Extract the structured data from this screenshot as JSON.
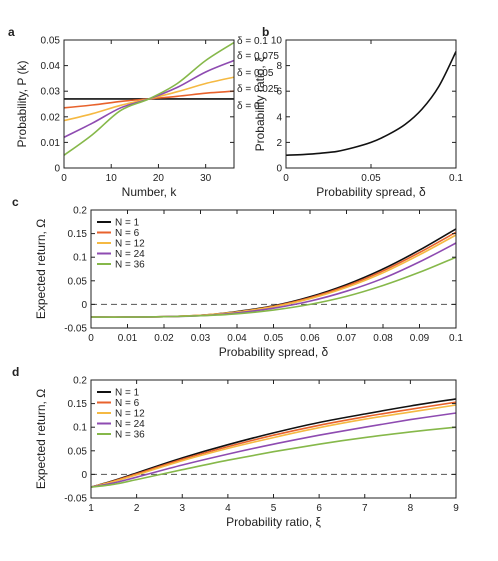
{
  "colors": {
    "black": "#111111",
    "red": "#e8622c",
    "yellow": "#f5b942",
    "purple": "#8e4bb1",
    "green": "#86b84a",
    "zero_line": "#555555"
  },
  "chart_data": [
    {
      "panel": "a",
      "type": "line",
      "xlabel": "Number, k",
      "ylabel": "Probability, P (k)",
      "xlim": [
        0,
        36
      ],
      "ylim": [
        0,
        0.05
      ],
      "xticks": [
        0,
        10,
        20,
        30
      ],
      "yticks": [
        0,
        0.01,
        0.02,
        0.03,
        0.04,
        0.05
      ],
      "grid": false,
      "series": [
        {
          "name": "δ = 0",
          "color": "#111111",
          "x": [
            0,
            36
          ],
          "y": [
            0.027,
            0.027
          ]
        },
        {
          "name": "δ = 0.025",
          "color": "#e8622c",
          "x": [
            0,
            6,
            12,
            18,
            24,
            30,
            36
          ],
          "y": [
            0.0235,
            0.0246,
            0.026,
            0.027,
            0.028,
            0.0292,
            0.03
          ]
        },
        {
          "name": "δ = 0.05",
          "color": "#f5b942",
          "x": [
            0,
            6,
            12,
            18,
            24,
            30,
            36
          ],
          "y": [
            0.0185,
            0.0212,
            0.0245,
            0.027,
            0.0298,
            0.033,
            0.0355
          ]
        },
        {
          "name": "δ = 0.075",
          "color": "#8e4bb1",
          "x": [
            0,
            6,
            12,
            18,
            24,
            30,
            36
          ],
          "y": [
            0.012,
            0.0175,
            0.0235,
            0.027,
            0.0315,
            0.0375,
            0.042
          ]
        },
        {
          "name": "δ = 0.1",
          "color": "#86b84a",
          "x": [
            0,
            6,
            12,
            18,
            24,
            30,
            36
          ],
          "y": [
            0.005,
            0.013,
            0.0225,
            0.027,
            0.033,
            0.042,
            0.049
          ]
        }
      ]
    },
    {
      "panel": "b",
      "type": "line",
      "xlabel": "Probability spread, δ",
      "ylabel": "Probability ratio, ξ",
      "xlim": [
        0,
        0.1
      ],
      "ylim": [
        0,
        10
      ],
      "xticks": [
        0,
        0.05,
        0.1
      ],
      "xticklabels": [
        "0",
        "0.05",
        "0.1"
      ],
      "yticks": [
        0,
        2,
        4,
        6,
        8,
        10
      ],
      "grid": false,
      "series": [
        {
          "color": "#111111",
          "x": [
            0,
            0.01,
            0.02,
            0.03,
            0.04,
            0.05,
            0.06,
            0.07,
            0.08,
            0.09,
            0.1
          ],
          "y": [
            1.0,
            1.05,
            1.15,
            1.3,
            1.6,
            2.0,
            2.6,
            3.4,
            4.6,
            6.4,
            9.1
          ]
        }
      ]
    },
    {
      "panel": "c",
      "type": "line",
      "xlabel": "Probability spread, δ",
      "ylabel": "Expected return, Ω",
      "xlim": [
        0,
        0.1
      ],
      "ylim": [
        -0.05,
        0.2
      ],
      "xticks": [
        0,
        0.01,
        0.02,
        0.03,
        0.04,
        0.05,
        0.06,
        0.07,
        0.08,
        0.09,
        0.1
      ],
      "xticklabels": [
        "0",
        "0.01",
        "0.02",
        "0.03",
        "0.04",
        "0.05",
        "0.06",
        "0.07",
        "0.08",
        "0.09",
        "0.1"
      ],
      "yticks": [
        -0.05,
        0,
        0.05,
        0.1,
        0.15,
        0.2
      ],
      "yticklabels": [
        "-0.05",
        "0",
        "0.05",
        "0.1",
        "0.15",
        "0.2"
      ],
      "zero_line": true,
      "legend": "top-left",
      "series": [
        {
          "name": "N = 1",
          "color": "#111111",
          "x": [
            0,
            0.01,
            0.02,
            0.03,
            0.04,
            0.05,
            0.06,
            0.07,
            0.08,
            0.09,
            0.1
          ],
          "y": [
            -0.027,
            -0.027,
            -0.026,
            -0.023,
            -0.015,
            -0.003,
            0.016,
            0.042,
            0.075,
            0.115,
            0.16
          ]
        },
        {
          "name": "N = 6",
          "color": "#e8622c",
          "x": [
            0,
            0.01,
            0.02,
            0.03,
            0.04,
            0.05,
            0.06,
            0.07,
            0.08,
            0.09,
            0.1
          ],
          "y": [
            -0.027,
            -0.027,
            -0.026,
            -0.023,
            -0.016,
            -0.004,
            0.014,
            0.039,
            0.071,
            0.11,
            0.153
          ]
        },
        {
          "name": "N = 12",
          "color": "#f5b942",
          "x": [
            0,
            0.01,
            0.02,
            0.03,
            0.04,
            0.05,
            0.06,
            0.07,
            0.08,
            0.09,
            0.1
          ],
          "y": [
            -0.027,
            -0.027,
            -0.026,
            -0.023,
            -0.016,
            -0.005,
            0.012,
            0.036,
            0.067,
            0.105,
            0.147
          ]
        },
        {
          "name": "N = 24",
          "color": "#8e4bb1",
          "x": [
            0,
            0.01,
            0.02,
            0.03,
            0.04,
            0.05,
            0.06,
            0.07,
            0.08,
            0.09,
            0.1
          ],
          "y": [
            -0.027,
            -0.027,
            -0.026,
            -0.024,
            -0.018,
            -0.008,
            0.007,
            0.028,
            0.055,
            0.09,
            0.13
          ]
        },
        {
          "name": "N = 36",
          "color": "#86b84a",
          "x": [
            0,
            0.01,
            0.02,
            0.03,
            0.04,
            0.05,
            0.06,
            0.07,
            0.08,
            0.09,
            0.1
          ],
          "y": [
            -0.027,
            -0.027,
            -0.026,
            -0.024,
            -0.02,
            -0.012,
            0.0,
            0.017,
            0.04,
            0.068,
            0.1
          ]
        }
      ]
    },
    {
      "panel": "d",
      "type": "line",
      "xlabel": "Probability ratio, ξ",
      "ylabel": "Expected return, Ω",
      "xlim": [
        1,
        9
      ],
      "ylim": [
        -0.05,
        0.2
      ],
      "xticks": [
        1,
        2,
        3,
        4,
        5,
        6,
        7,
        8,
        9
      ],
      "yticks": [
        -0.05,
        0,
        0.05,
        0.1,
        0.15,
        0.2
      ],
      "yticklabels": [
        "-0.05",
        "0",
        "0.05",
        "0.1",
        "0.15",
        "0.2"
      ],
      "zero_line": true,
      "legend": "top-left",
      "series": [
        {
          "name": "N = 1",
          "color": "#111111",
          "x": [
            1,
            1.5,
            2,
            3,
            4,
            5,
            6,
            7,
            8,
            9
          ],
          "y": [
            -0.027,
            -0.013,
            0.003,
            0.035,
            0.063,
            0.088,
            0.11,
            0.128,
            0.145,
            0.16
          ]
        },
        {
          "name": "N = 6",
          "color": "#e8622c",
          "x": [
            1,
            1.5,
            2,
            3,
            4,
            5,
            6,
            7,
            8,
            9
          ],
          "y": [
            -0.027,
            -0.014,
            0.001,
            0.032,
            0.059,
            0.083,
            0.104,
            0.122,
            0.138,
            0.153
          ]
        },
        {
          "name": "N = 12",
          "color": "#f5b942",
          "x": [
            1,
            1.5,
            2,
            3,
            4,
            5,
            6,
            7,
            8,
            9
          ],
          "y": [
            -0.027,
            -0.015,
            -0.001,
            0.029,
            0.055,
            0.078,
            0.099,
            0.117,
            0.132,
            0.147
          ]
        },
        {
          "name": "N = 24",
          "color": "#8e4bb1",
          "x": [
            1,
            1.5,
            2,
            3,
            4,
            5,
            6,
            7,
            8,
            9
          ],
          "y": [
            -0.027,
            -0.018,
            -0.006,
            0.02,
            0.043,
            0.064,
            0.083,
            0.1,
            0.116,
            0.13
          ]
        },
        {
          "name": "N = 36",
          "color": "#86b84a",
          "x": [
            1,
            1.5,
            2,
            3,
            4,
            5,
            6,
            7,
            8,
            9
          ],
          "y": [
            -0.027,
            -0.021,
            -0.011,
            0.01,
            0.03,
            0.048,
            0.064,
            0.078,
            0.09,
            0.1
          ]
        }
      ]
    }
  ],
  "panel_labels": [
    "a",
    "b",
    "c",
    "d"
  ]
}
